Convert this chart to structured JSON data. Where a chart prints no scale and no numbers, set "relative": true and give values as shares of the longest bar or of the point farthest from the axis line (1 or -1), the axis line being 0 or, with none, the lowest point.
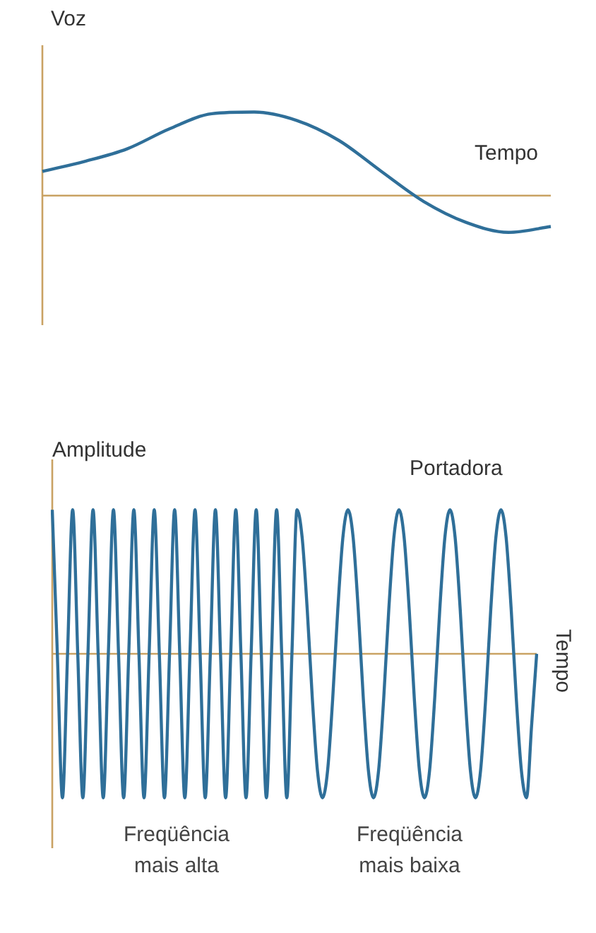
{
  "chart_data": [
    {
      "type": "line",
      "relative": true,
      "ylabel": "Voz",
      "xlabel": "Tempo",
      "marker": "none",
      "ref_lines": [
        {
          "axis": "y",
          "value": 0,
          "color": "#c9a263"
        }
      ],
      "categories": [
        null,
        null,
        null,
        null,
        null,
        null,
        null,
        null,
        null,
        null,
        null,
        null,
        null
      ],
      "series": [
        {
          "color": "#2f6f99",
          "values": [
            0.29,
            0.41,
            0.56,
            0.8,
            0.98,
            1,
            0.9,
            0.66,
            0.29,
            -0.07,
            -0.32,
            -0.44,
            -0.37
          ]
        }
      ]
    },
    {
      "type": "line",
      "relative": true,
      "ylabel": "Amplitude",
      "marker": "none",
      "ref_lines": [
        {
          "axis": "y",
          "value": 0,
          "color": "#c9a263",
          "label": "Tempo"
        }
      ],
      "annotations": [
        "Freqüência mais alta",
        "Freqüência mais baixa"
      ],
      "categories": [
        null,
        null,
        null,
        null,
        null,
        null,
        null,
        null,
        null,
        null,
        null,
        null,
        null,
        null,
        null,
        null,
        null,
        null,
        null,
        null,
        null,
        null,
        null,
        null,
        null,
        null,
        null,
        null,
        null,
        null,
        null,
        null,
        null,
        null,
        null,
        null,
        null,
        null,
        null,
        null,
        null,
        null,
        null,
        null,
        null,
        null,
        null,
        null,
        null,
        null,
        null,
        null,
        null,
        null,
        null,
        null,
        null,
        null,
        null,
        null,
        null,
        null,
        null,
        null,
        null,
        null,
        null,
        null,
        null,
        null,
        null,
        null,
        null,
        null,
        null,
        null,
        null,
        null,
        null,
        null,
        null,
        null,
        null,
        null,
        null,
        null,
        null,
        null,
        null,
        null,
        null,
        null,
        null,
        null,
        null,
        null
      ],
      "series": [
        {
          "name": "Portadora",
          "color": "#2f6f99",
          "values": [
            1,
            0,
            -1,
            0,
            1,
            0,
            -1,
            0,
            1,
            0,
            -1,
            0,
            1,
            0,
            -1,
            0,
            1,
            0,
            -1,
            0,
            1,
            0,
            -1,
            0,
            1,
            0,
            -1,
            0,
            1,
            0,
            -1,
            0,
            1,
            0,
            -1,
            0,
            1,
            0,
            -1,
            0,
            1,
            0,
            -1,
            0,
            1,
            0,
            -1,
            0,
            1,
            0.81,
            0.31,
            -0.31,
            -0.81,
            -1,
            -0.81,
            -0.31,
            0.31,
            0.81,
            1,
            0.81,
            0.31,
            -0.31,
            -0.81,
            -1,
            -0.81,
            -0.31,
            0.31,
            0.81,
            1,
            0.81,
            0.31,
            -0.31,
            -0.81,
            -1,
            -0.81,
            -0.31,
            0.31,
            0.81,
            1,
            0.81,
            0.31,
            -0.31,
            -0.81,
            -1,
            -0.81,
            -0.31,
            0.31,
            0.81,
            1,
            0.81,
            0.31,
            -0.31,
            -0.81,
            -1,
            -0.5,
            0
          ]
        }
      ]
    }
  ]
}
